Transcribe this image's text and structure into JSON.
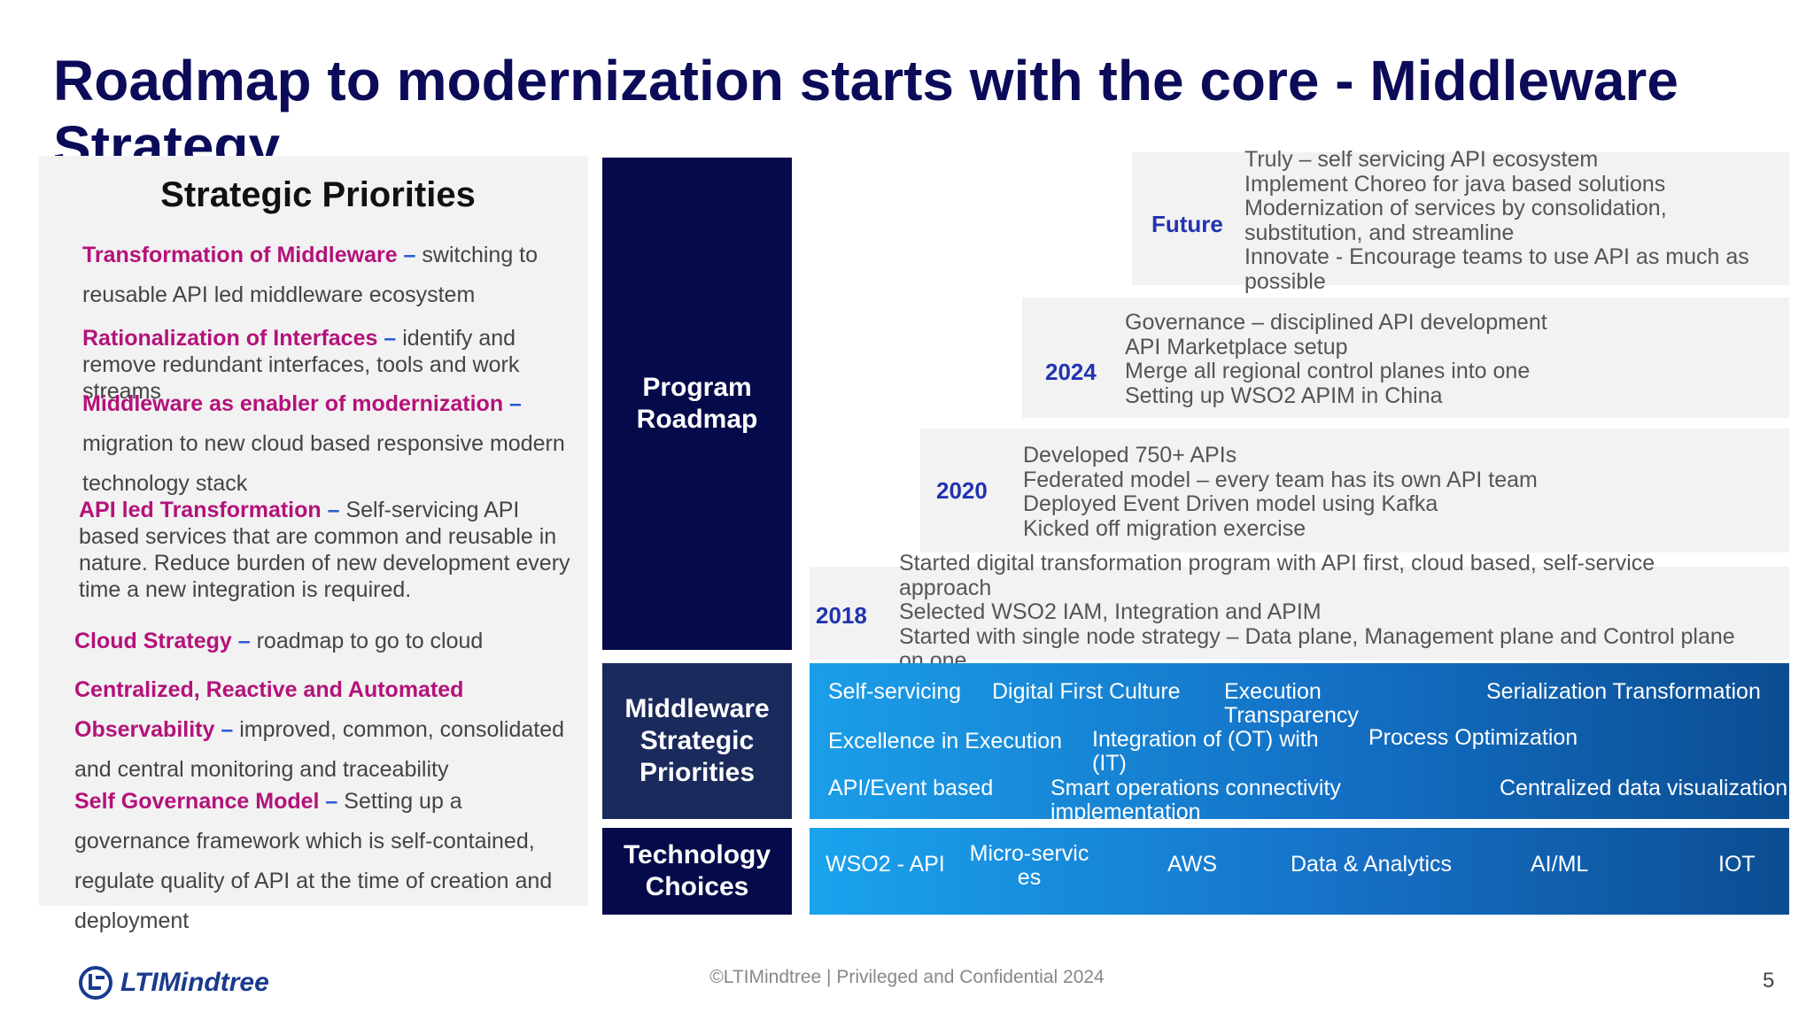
{
  "title": "Roadmap to modernization starts with the core - Middleware Strategy ...",
  "strategic_priorities": {
    "heading": "Strategic Priorities",
    "items": [
      {
        "highlight": "Transformation of Middleware",
        "dash": " – ",
        "rest": "switching to reusable API led middleware ecosystem"
      },
      {
        "highlight": "Rationalization of Interfaces",
        "dash": " – ",
        "rest": "identify and remove redundant interfaces, tools and work streams"
      },
      {
        "highlight": "Middleware as enabler of modernization",
        "dash": " – ",
        "rest": "migration to new cloud based responsive modern technology stack"
      },
      {
        "highlight": "API led Transformation",
        "dash": " – ",
        "rest": "Self-servicing API based services that are common and reusable in nature. Reduce burden of new development every time a new integration is required."
      },
      {
        "highlight": "Cloud Strategy",
        "dash": " – ",
        "rest": "roadmap to go to cloud"
      },
      {
        "highlight": "Centralized, Reactive and Automated Observability",
        "dash": " – ",
        "rest": "improved, common, consolidated and central monitoring and traceability"
      },
      {
        "highlight": "Self Governance Model",
        "dash": " – ",
        "rest": "Setting up a governance framework which is self-contained, regulate quality of API at the time of creation and deployment"
      }
    ]
  },
  "labels": {
    "program_roadmap": "Program Roadmap",
    "middleware_priorities": "Middleware Strategic Priorities",
    "technology_choices": "Technology Choices"
  },
  "roadmap": [
    {
      "year": "Future",
      "lines": [
        "Truly – self servicing API ecosystem",
        "Implement Choreo for java based solutions",
        "Modernization of services by consolidation,",
        "substitution, and streamline",
        "Innovate - Encourage teams to use API as much as",
        "possible"
      ]
    },
    {
      "year": "2024",
      "lines": [
        "Governance – disciplined API development",
        "API Marketplace setup",
        "Merge all regional control planes into one",
        "Setting up WSO2 APIM in China"
      ]
    },
    {
      "year": "2020",
      "lines": [
        "Developed 750+ APIs",
        "Federated model – every team has its own API team",
        "Deployed Event Driven model using Kafka",
        "Kicked off migration exercise"
      ]
    },
    {
      "year": "2018",
      "lines": [
        "Started digital transformation program with API first, cloud based, self-service",
        "approach",
        "Selected WSO2 IAM, Integration and APIM",
        " Started with single node strategy – Data plane, Management plane and Control plane",
        "on one"
      ]
    }
  ],
  "priority_items": [
    "Self-servicing",
    "Digital First Culture",
    "Execution Transparency",
    "Serialization Transformation",
    "Excellence in Execution",
    "Integration of (OT) with (IT)",
    "Process Optimization",
    "API/Event based",
    "Smart operations connectivity implementation",
    "Centralized data visualization"
  ],
  "technology_items": [
    "WSO2 - API",
    "Micro-servic es",
    "AWS",
    "Data & Analytics",
    "AI/ML",
    "IOT"
  ],
  "footer": {
    "logo": "LTIMindtree",
    "confidential": "©LTIMindtree | Privileged and Confidential 2024",
    "page": "5"
  }
}
